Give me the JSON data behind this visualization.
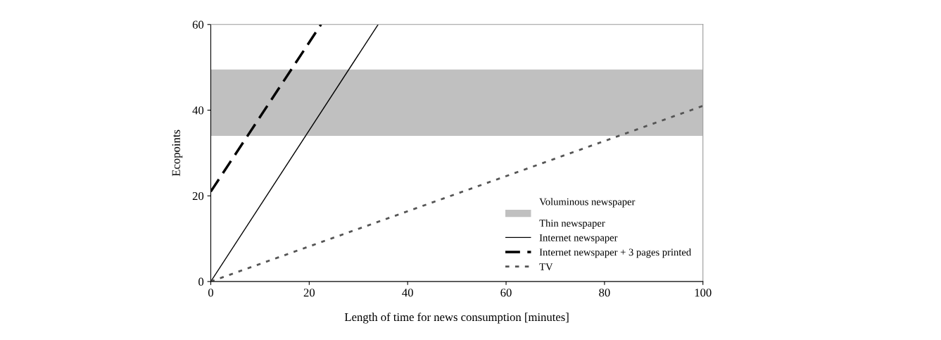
{
  "chart_data": {
    "type": "line",
    "xlabel": "Length of time for news consumption [minutes]",
    "ylabel": "Ecopoints",
    "xlim": [
      0,
      100
    ],
    "xticks": [
      0,
      20,
      40,
      60,
      80,
      100
    ],
    "ylim": [
      0,
      60
    ],
    "yticks": [
      0,
      20,
      40,
      60
    ],
    "grid": false,
    "legend": "bottom right",
    "bands": [
      {
        "axis": "y",
        "from": 34,
        "to": 49.5,
        "label": "Voluminous newspaper\n\nThin newspaper",
        "color": "#c0c0c0"
      }
    ],
    "series": [
      {
        "name": "Internet newspaper",
        "color": "#000000",
        "line_style": "solid",
        "x": [
          0,
          34
        ],
        "values": [
          0,
          60
        ]
      },
      {
        "name": "Internet newspaper + 3 pages printed",
        "color": "#000000",
        "line_style": "dashed",
        "x": [
          0,
          22.4
        ],
        "values": [
          21,
          60
        ]
      },
      {
        "name": "TV",
        "color": "#555555",
        "line_style": "dotted",
        "x": [
          0,
          100
        ],
        "values": [
          0,
          41
        ]
      }
    ]
  }
}
